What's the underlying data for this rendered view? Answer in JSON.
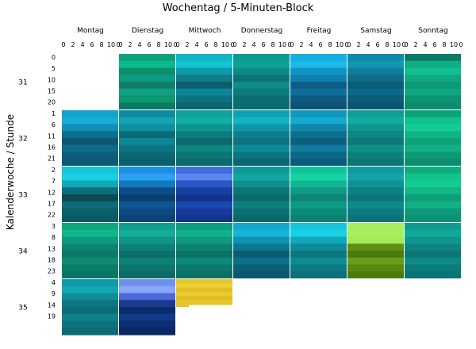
{
  "chart_data": {
    "type": "heatmap",
    "title": "Wochentag / 5-Minuten-Block",
    "ylabel": "Kalenderwoche / Stunde",
    "days": [
      "Montag",
      "Dienstag",
      "Mittwoch",
      "Donnerstag",
      "Freitag",
      "Samstag",
      "Sonntag"
    ],
    "x_ticks": [
      "0",
      "2",
      "4",
      "6",
      "8",
      "10",
      "0"
    ],
    "x_range": [
      0,
      11
    ],
    "hour_range": [
      0,
      23
    ],
    "weeks": [
      {
        "label": "31",
        "hour_ticks": [
          "0",
          "5",
          "10",
          "15",
          "20"
        ],
        "cells": [
          {
            "day": "Montag",
            "empty": true
          },
          {
            "day": "Dienstag",
            "colors": [
              "#0aa37a",
              "#0db88e",
              "#0a8f6b",
              "#0f9a83",
              "#0d7f6a",
              "#12a082",
              "#0b9a70",
              "#0b7a62"
            ]
          },
          {
            "day": "Mittwoch",
            "colors": [
              "#0fb6c8",
              "#11c3d3",
              "#0e9aa6",
              "#0f7d86",
              "#0c5e6e",
              "#0c8696",
              "#0e7080",
              "#0a6670"
            ]
          },
          {
            "day": "Donnerstag",
            "colors": [
              "#0e9a8e",
              "#10a09a",
              "#0d8a86",
              "#0b7373",
              "#0e8a88",
              "#0c7a78",
              "#0b6e70",
              "#0b6c6e"
            ]
          },
          {
            "day": "Freitag",
            "colors": [
              "#14aee0",
              "#1bb9ea",
              "#1194c2",
              "#0e7fae",
              "#0d5e86",
              "#0e6e98",
              "#0c5a80",
              "#0b5274"
            ]
          },
          {
            "day": "Samstag",
            "colors": [
              "#0f8aa8",
              "#1396b4",
              "#0f7e9a",
              "#0d6d88",
              "#0c5e78",
              "#0c6888",
              "#0b5c76",
              "#0a5672"
            ]
          },
          {
            "day": "Sonntag",
            "colors": [
              "#0b7a66",
              "#0fae86",
              "#12c08f",
              "#10a883",
              "#0d9b76",
              "#0fa781",
              "#0d9272",
              "#0c8c6e"
            ]
          }
        ]
      },
      {
        "label": "32",
        "hour_ticks": [
          "1",
          "6",
          "11",
          "16",
          "21"
        ],
        "cells": [
          {
            "day": "Montag",
            "colors": [
              "#13a3cc",
              "#16aed6",
              "#1090b8",
              "#0d6e8e",
              "#0c5870",
              "#0d6c8a",
              "#0c5e7a",
              "#0b5a74"
            ]
          },
          {
            "day": "Dienstag",
            "colors": [
              "#0e8aa0",
              "#12a3b4",
              "#0f8e9c",
              "#0b6a78",
              "#0e8694",
              "#0c7482",
              "#0b6674",
              "#0a5f6c"
            ]
          },
          {
            "day": "Mittwoch",
            "colors": [
              "#0ea29a",
              "#12ada6",
              "#0e9490",
              "#0c7c7c",
              "#0c6a6e",
              "#0d8480",
              "#0c7472",
              "#0b6a6c"
            ]
          },
          {
            "day": "Donnerstag",
            "colors": [
              "#10a0b4",
              "#14b2c4",
              "#0f96a6",
              "#0d7e8e",
              "#0d7282",
              "#0e8a96",
              "#0c7480",
              "#0b6672"
            ]
          },
          {
            "day": "Freitag",
            "colors": [
              "#1196bc",
              "#15a9cd",
              "#0f86aa",
              "#0d6f90",
              "#0c5f7c",
              "#0e7da0",
              "#0c6788",
              "#0b5c7a"
            ]
          },
          {
            "day": "Samstag",
            "colors": [
              "#0f9f98",
              "#11ac9f",
              "#0f958e",
              "#0d8684",
              "#0c7878",
              "#0e9088",
              "#0c7f7a",
              "#0c7674"
            ]
          },
          {
            "day": "Sonntag",
            "colors": [
              "#0ca27a",
              "#11c08c",
              "#13cc92",
              "#10b488",
              "#0ea27c",
              "#10b084",
              "#0e9a78",
              "#0c8c70"
            ]
          }
        ]
      },
      {
        "label": "33",
        "hour_ticks": [
          "2",
          "7",
          "12",
          "17",
          "22"
        ],
        "cells": [
          {
            "day": "Montag",
            "colors": [
              "#16c6d8",
              "#19d0e0",
              "#12a8ba",
              "#0d6e7a",
              "#0a4a56",
              "#0d6c78",
              "#0c5e6a",
              "#0b5a66"
            ]
          },
          {
            "day": "Dienstag",
            "colors": [
              "#1b8ee6",
              "#2aa0f2",
              "#1478c0",
              "#0d4e86",
              "#0b3e70",
              "#0d5692",
              "#0b4a80",
              "#0a4276"
            ]
          },
          {
            "day": "Mittwoch",
            "colors": [
              "#3c6ee0",
              "#5a86ee",
              "#2856c4",
              "#173ea0",
              "#13328c",
              "#1a46b0",
              "#163a9c",
              "#12348a"
            ]
          },
          {
            "day": "Donnerstag",
            "colors": [
              "#0e9a96",
              "#12a6a0",
              "#0f8e8c",
              "#0c7676",
              "#0b6a6a",
              "#0d807e",
              "#0c7070",
              "#0b6868"
            ]
          },
          {
            "day": "Freitag",
            "colors": [
              "#10c498",
              "#14d4a4",
              "#11b495",
              "#0e9a84",
              "#0c8674",
              "#0e9a86",
              "#0c8a78",
              "#0b7f70"
            ]
          },
          {
            "day": "Samstag",
            "colors": [
              "#0f9aa0",
              "#12a4a8",
              "#0f9296",
              "#0d8286",
              "#0c7478",
              "#0e8a8c",
              "#0c7c80",
              "#0b7478"
            ]
          },
          {
            "day": "Sonntag",
            "colors": [
              "#0cae7e",
              "#12c48c",
              "#14cc92",
              "#11b688",
              "#0e9e7a",
              "#10b084",
              "#0e9a78",
              "#0d9274"
            ]
          }
        ]
      },
      {
        "label": "34",
        "hour_ticks": [
          "3",
          "8",
          "13",
          "18",
          "23"
        ],
        "cells": [
          {
            "day": "Montag",
            "colors": [
              "#0ca87e",
              "#10b88c",
              "#0e9c7e",
              "#0c8670",
              "#0b7868",
              "#0d8c72",
              "#0c7c6a",
              "#0b7466"
            ]
          },
          {
            "day": "Dienstag",
            "colors": [
              "#0e9e8c",
              "#12ae98",
              "#0f9688",
              "#0d8078",
              "#0b6e6a",
              "#0d8274",
              "#0c746c",
              "#0b6c66"
            ]
          },
          {
            "day": "Mittwoch",
            "colors": [
              "#0c9e7e",
              "#11b08c",
              "#0f9a80",
              "#0c8272",
              "#0b7266",
              "#0d8876",
              "#0c786c",
              "#0b7068"
            ]
          },
          {
            "day": "Donnerstag",
            "colors": [
              "#11a8cc",
              "#15b6d8",
              "#0f92b0",
              "#0d7690",
              "#0b5c72",
              "#0d7088",
              "#0b5e74",
              "#0a566c"
            ]
          },
          {
            "day": "Freitag",
            "colors": [
              "#16c4dc",
              "#1ad0e4",
              "#11a6b8",
              "#0e8a96",
              "#0c7680",
              "#0e8a92",
              "#0c7a84",
              "#0b707a"
            ]
          },
          {
            "day": "Samstag",
            "colors": [
              "#a6ee5c",
              "#a9f060",
              "#a2ec58",
              "#5e8e14",
              "#4a7a0c",
              "#6a9e1a",
              "#58880f",
              "#4c7c0c"
            ]
          },
          {
            "day": "Sonntag",
            "colors": [
              "#0e9c90",
              "#11aa9a",
              "#0f968e",
              "#0d8482",
              "#0c7676",
              "#0e8a86",
              "#0c7c7a",
              "#0b7474"
            ]
          }
        ]
      },
      {
        "label": "35",
        "hour_ticks": [
          "4",
          "9",
          "14",
          "19"
        ],
        "cells": [
          {
            "day": "Montag",
            "colors": [
              "#0e9aa6",
              "#11aab2",
              "#0e8e98",
              "#0c7682",
              "#0c6c78",
              "#0d828c",
              "#0c727e",
              "#0b6a76"
            ]
          },
          {
            "day": "Dienstag",
            "colors": [
              "#6f8ef0",
              "#8aa6f6",
              "#4a6ad8",
              "#1a3a90",
              "#0b2c6c",
              "#12388a",
              "#0c2e72",
              "#0a2864"
            ]
          },
          {
            "day": "Mittwoch",
            "partial": true,
            "colors": [
              "#e6c62a",
              "#eccd34",
              "#e2c028",
              "#e8ca30",
              "#e0be26",
              "#e6c62c"
            ]
          },
          {
            "day": "Donnerstag",
            "empty": true
          },
          {
            "day": "Freitag",
            "empty": true
          },
          {
            "day": "Samstag",
            "empty": true
          },
          {
            "day": "Sonntag",
            "empty": true
          }
        ]
      }
    ]
  }
}
